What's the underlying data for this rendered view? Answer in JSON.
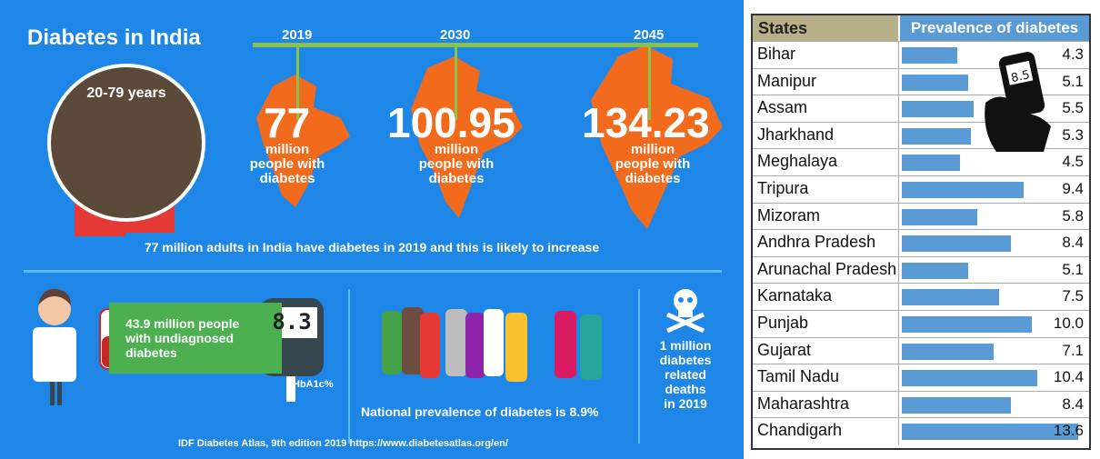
{
  "infographic": {
    "title": "Diabetes in India",
    "age_group": "20-79 years",
    "years": [
      "2019",
      "2030",
      "2045"
    ],
    "counts": [
      "77",
      "100.95",
      "134.23"
    ],
    "count_caption": [
      "million",
      "people with",
      "diabetes"
    ],
    "summary": "77 million adults in India have diabetes in 2019 and this is likely to increase",
    "undiagnosed": [
      "43.9 million people",
      "with undiagnosed",
      "diabetes"
    ],
    "meter_reading": "8.3",
    "hba1c": "HbA1c%",
    "national_prevalence": "National prevalence of diabetes is 8.9%",
    "deaths": [
      "1 million",
      "diabetes",
      "related",
      "deaths",
      "in 2019"
    ],
    "source": "IDF Diabetes Atlas, 9th edition 2019  https://www.diabetesatlas.org/en/",
    "handheld_reading": "8.5"
  },
  "chart_data": {
    "type": "bar",
    "orientation": "horizontal",
    "columns": [
      "States",
      "Prevalence of diabetes"
    ],
    "categories": [
      "Bihar",
      "Manipur",
      "Assam",
      "Jharkhand",
      "Meghalaya",
      "Tripura",
      "Mizoram",
      "Andhra Pradesh",
      "Arunachal Pradesh",
      "Karnataka",
      "Punjab",
      "Gujarat",
      "Tamil Nadu",
      "Maharashtra",
      "Chandigarh"
    ],
    "values": [
      4.3,
      5.1,
      5.5,
      5.3,
      4.5,
      9.4,
      5.8,
      8.4,
      5.1,
      7.5,
      10.0,
      7.1,
      10.4,
      8.4,
      13.6
    ],
    "labels": [
      "4.3",
      "5.1",
      "5.5",
      "5.3",
      "4.5",
      "9.4",
      "5.8",
      "8.4",
      "5.1",
      "7.5",
      "10.0",
      "7.1",
      "10.4",
      "8.4",
      "13.6"
    ],
    "xlim": [
      0,
      14
    ]
  },
  "colors": {
    "background": "#1d86e6",
    "accent_green": "#8bc34a",
    "map_orange": "#f26b1d",
    "bar_blue": "#5b9bd5",
    "header_tan": "#b7b089"
  }
}
